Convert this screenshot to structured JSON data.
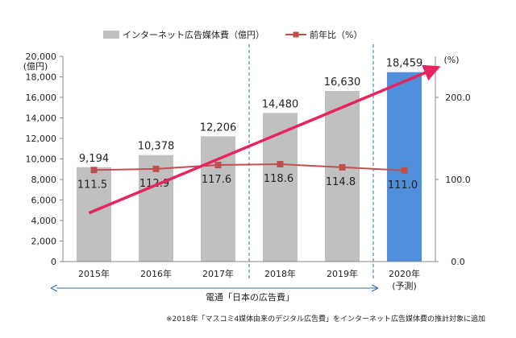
{
  "chart_data": {
    "type": "bar",
    "categories": [
      "2015年",
      "2016年",
      "2017年",
      "2018年",
      "2019年",
      "2020年"
    ],
    "category_sub": [
      "",
      "",
      "",
      "",
      "",
      "(予測)"
    ],
    "series": [
      {
        "name": "インターネット広告媒体費（億円）",
        "kind": "bar",
        "axis": "left",
        "values": [
          9194,
          10378,
          12206,
          14480,
          16630,
          18459
        ],
        "labels": [
          "9,194",
          "10,378",
          "12,206",
          "14,480",
          "16,630",
          "18,459"
        ]
      },
      {
        "name": "前年比（%）",
        "kind": "line",
        "axis": "right",
        "values": [
          111.5,
          112.9,
          117.6,
          118.6,
          114.8,
          111.0
        ],
        "labels": [
          "111.5",
          "112.9",
          "117.6",
          "118.6",
          "114.8",
          "111.0"
        ]
      }
    ],
    "y_left": {
      "unit": "(億円)",
      "ylim": [
        0,
        20000
      ],
      "ticks": [
        0,
        2000,
        4000,
        6000,
        8000,
        10000,
        12000,
        14000,
        16000,
        18000,
        20000
      ],
      "tick_labels": [
        "0",
        "2,000",
        "4,000",
        "6,000",
        "8,000",
        "10,000",
        "12,000",
        "14,000",
        "16,000",
        "18,000",
        "20,000"
      ]
    },
    "y_right": {
      "unit": "(%)",
      "ylim": [
        0,
        250
      ],
      "ticks": [
        0,
        100,
        200
      ],
      "tick_labels": [
        "0.0",
        "100.0",
        "200.0"
      ]
    },
    "source_label": "電通「日本の広告費」",
    "footnote": "※2018年「マスコミ4媒体由来のデジタル広告費」をインターネット広告媒体費の推計対象に追加",
    "colors": {
      "bar": "#c0c0c0",
      "forecast_bar": "#4f8fdc",
      "line": "#c0504d",
      "trend_arrow": "#e8245f",
      "divider": "#2f6fb0"
    },
    "highlighted_category": "2020年",
    "trend_arrow": true,
    "dashed_dividers_after": [
      "2017年",
      "2019年"
    ],
    "legend_position": "top-center"
  }
}
